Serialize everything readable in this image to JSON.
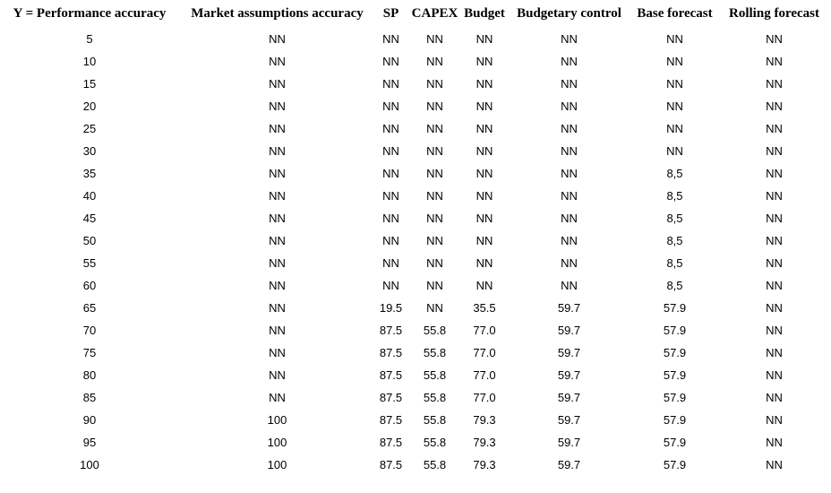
{
  "colors": {
    "background": "#ffffff",
    "text": "#000000"
  },
  "chart_data": {
    "type": "table",
    "title": "",
    "columns": [
      "Y = Performance accuracy",
      "Market assumptions accuracy",
      "SP",
      "CAPEX",
      "Budget",
      "Budgetary control",
      "Base forecast",
      "Rolling forecast"
    ],
    "rows": [
      [
        "5",
        "NN",
        "NN",
        "NN",
        "NN",
        "NN",
        "NN",
        "NN"
      ],
      [
        "10",
        "NN",
        "NN",
        "NN",
        "NN",
        "NN",
        "NN",
        "NN"
      ],
      [
        "15",
        "NN",
        "NN",
        "NN",
        "NN",
        "NN",
        "NN",
        "NN"
      ],
      [
        "20",
        "NN",
        "NN",
        "NN",
        "NN",
        "NN",
        "NN",
        "NN"
      ],
      [
        "25",
        "NN",
        "NN",
        "NN",
        "NN",
        "NN",
        "NN",
        "NN"
      ],
      [
        "30",
        "NN",
        "NN",
        "NN",
        "NN",
        "NN",
        "NN",
        "NN"
      ],
      [
        "35",
        "NN",
        "NN",
        "NN",
        "NN",
        "NN",
        "8,5",
        "NN"
      ],
      [
        "40",
        "NN",
        "NN",
        "NN",
        "NN",
        "NN",
        "8,5",
        "NN"
      ],
      [
        "45",
        "NN",
        "NN",
        "NN",
        "NN",
        "NN",
        "8,5",
        "NN"
      ],
      [
        "50",
        "NN",
        "NN",
        "NN",
        "NN",
        "NN",
        "8,5",
        "NN"
      ],
      [
        "55",
        "NN",
        "NN",
        "NN",
        "NN",
        "NN",
        "8,5",
        "NN"
      ],
      [
        "60",
        "NN",
        "NN",
        "NN",
        "NN",
        "NN",
        "8,5",
        "NN"
      ],
      [
        "65",
        "NN",
        "19.5",
        "NN",
        "35.5",
        "59.7",
        "57.9",
        "NN"
      ],
      [
        "70",
        "NN",
        "87.5",
        "55.8",
        "77.0",
        "59.7",
        "57.9",
        "NN"
      ],
      [
        "75",
        "NN",
        "87.5",
        "55.8",
        "77.0",
        "59.7",
        "57.9",
        "NN"
      ],
      [
        "80",
        "NN",
        "87.5",
        "55.8",
        "77.0",
        "59.7",
        "57.9",
        "NN"
      ],
      [
        "85",
        "NN",
        "87.5",
        "55.8",
        "77.0",
        "59.7",
        "57.9",
        "NN"
      ],
      [
        "90",
        "100",
        "87.5",
        "55.8",
        "79.3",
        "59.7",
        "57.9",
        "NN"
      ],
      [
        "95",
        "100",
        "87.5",
        "55.8",
        "79.3",
        "59.7",
        "57.9",
        "NN"
      ],
      [
        "100",
        "100",
        "87.5",
        "55.8",
        "79.3",
        "59.7",
        "57.9",
        "NN"
      ]
    ]
  }
}
